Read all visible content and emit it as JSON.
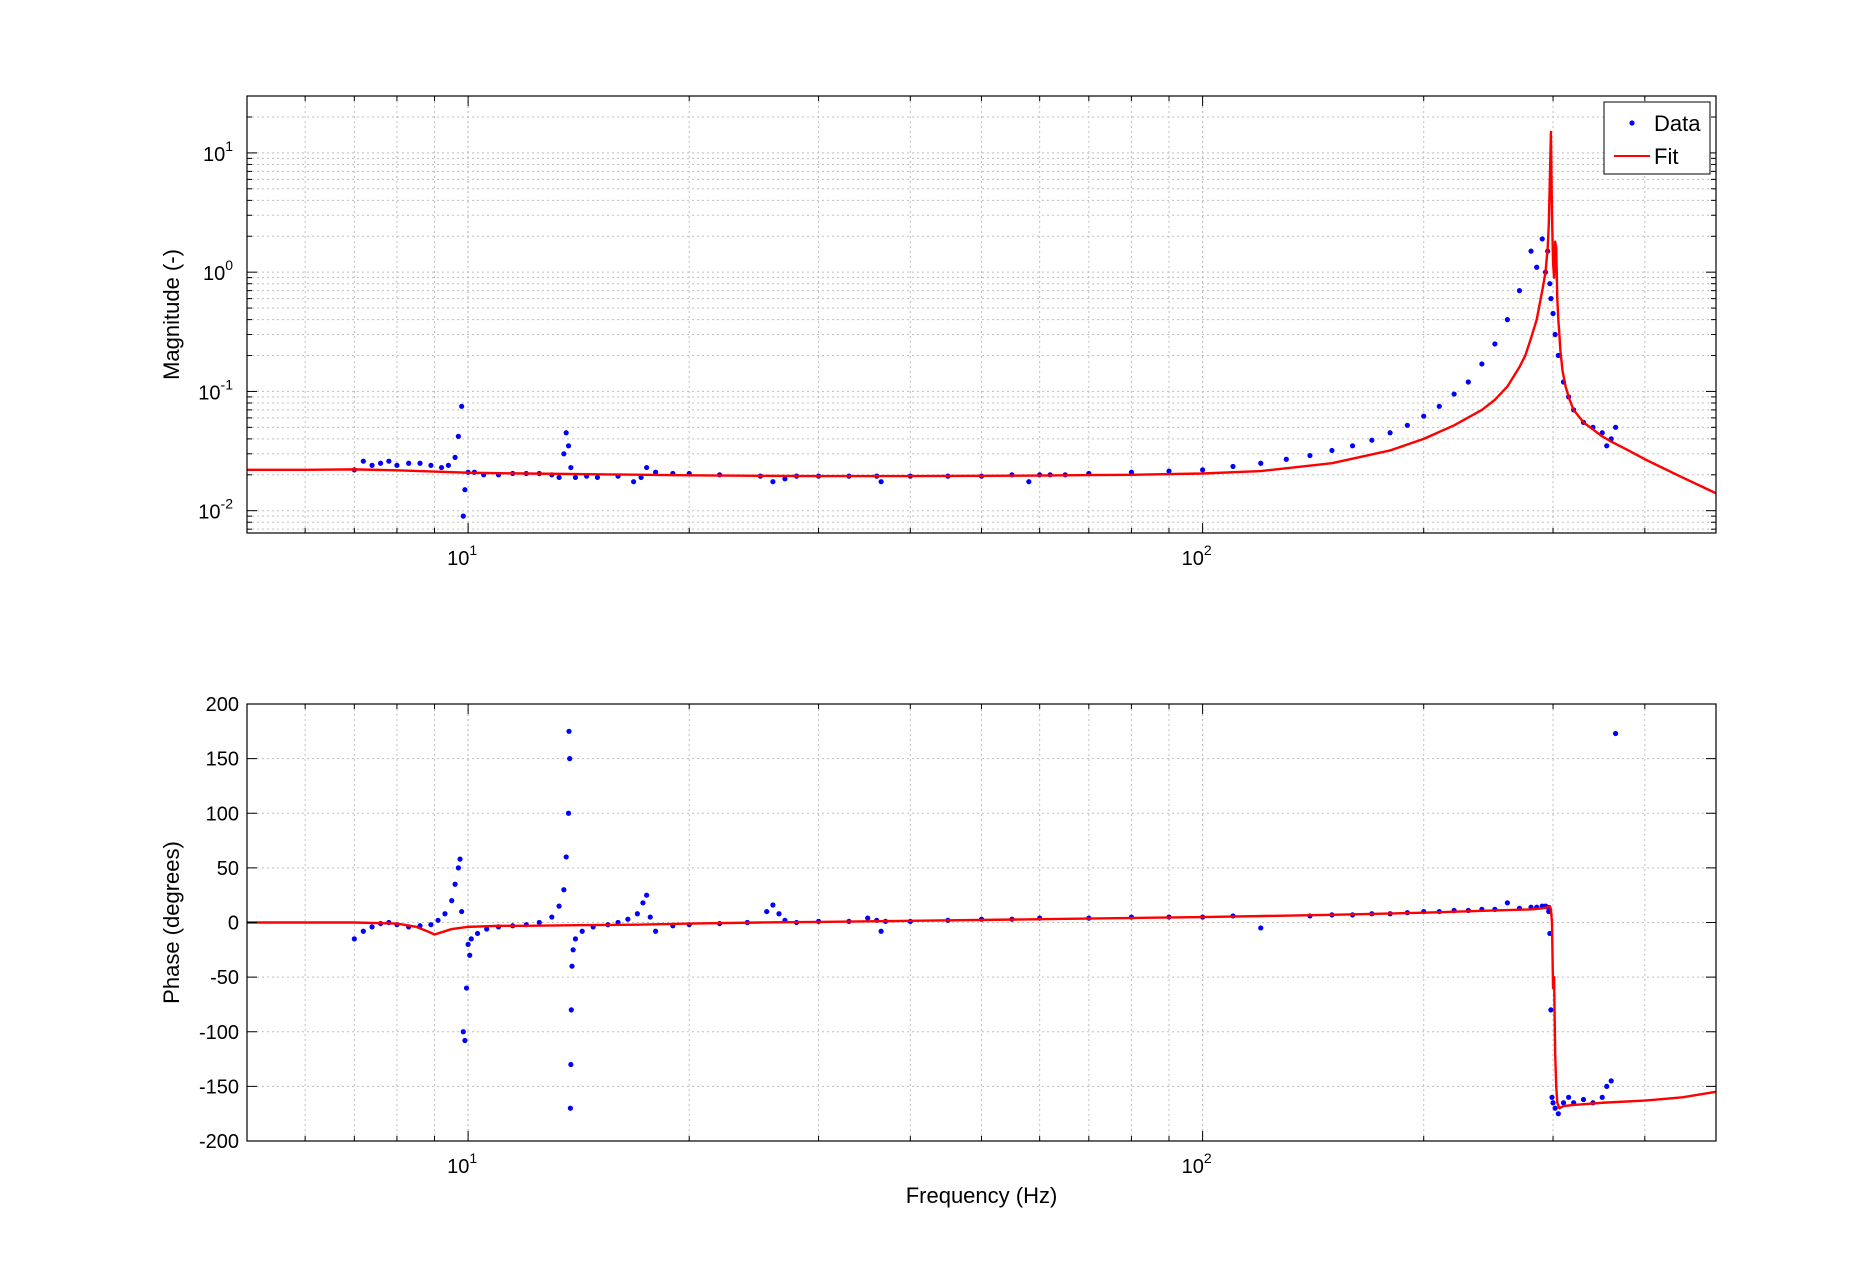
{
  "colors": {
    "data": "#0000ff",
    "fit": "#ff0000",
    "grid": "#bfbfbf",
    "axes": "#000000"
  },
  "chart_data": [
    {
      "type": "scatter",
      "xscale": "log",
      "yscale": "log",
      "xlim": [
        5,
        500
      ],
      "ylim": [
        0.0065,
        30
      ],
      "xlabel": "",
      "ylabel": "Magnitude (-)",
      "grid": true,
      "legend": {
        "placement": "top-right",
        "entries": [
          "Data",
          "Fit"
        ]
      },
      "x_ticks": [
        {
          "value": 10,
          "base": "10",
          "exp": "1"
        },
        {
          "value": 100,
          "base": "10",
          "exp": "2"
        }
      ],
      "y_ticks": [
        {
          "value": 0.01,
          "base": "10",
          "exp": "-2"
        },
        {
          "value": 0.1,
          "base": "10",
          "exp": "-1"
        },
        {
          "value": 1,
          "base": "10",
          "exp": "0"
        },
        {
          "value": 10,
          "base": "10",
          "exp": "1"
        }
      ],
      "series": [
        {
          "name": "Data",
          "style": "points",
          "x": [
            7,
            7.2,
            7.4,
            7.6,
            7.8,
            8,
            8.3,
            8.6,
            8.9,
            9.2,
            9.4,
            9.6,
            9.7,
            9.8,
            9.85,
            9.9,
            10,
            10.2,
            10.5,
            11,
            11.5,
            12,
            12.5,
            13,
            13.3,
            13.5,
            13.6,
            13.7,
            13.8,
            14,
            14.5,
            15,
            16,
            16.8,
            17.2,
            17.5,
            18,
            19,
            20,
            22,
            25,
            26,
            27,
            28,
            30,
            33,
            36,
            36.5,
            40,
            45,
            50,
            55,
            58,
            60,
            62,
            65,
            70,
            80,
            90,
            100,
            110,
            120,
            130,
            140,
            150,
            160,
            170,
            180,
            190,
            200,
            210,
            220,
            230,
            240,
            250,
            260,
            270,
            280,
            285,
            290,
            293,
            295,
            297,
            298,
            300,
            302,
            305,
            310,
            315,
            320,
            330,
            340,
            350,
            355,
            360,
            365
          ],
          "y": [
            0.022,
            0.026,
            0.024,
            0.025,
            0.026,
            0.024,
            0.025,
            0.025,
            0.024,
            0.023,
            0.024,
            0.028,
            0.042,
            0.075,
            0.009,
            0.015,
            0.021,
            0.021,
            0.02,
            0.02,
            0.0205,
            0.0205,
            0.0205,
            0.02,
            0.019,
            0.03,
            0.045,
            0.035,
            0.023,
            0.019,
            0.0195,
            0.019,
            0.0195,
            0.0175,
            0.019,
            0.023,
            0.021,
            0.0205,
            0.0205,
            0.02,
            0.0195,
            0.0175,
            0.0185,
            0.0195,
            0.0195,
            0.0195,
            0.0195,
            0.0175,
            0.0195,
            0.0195,
            0.0195,
            0.02,
            0.0175,
            0.02,
            0.02,
            0.02,
            0.0205,
            0.021,
            0.0215,
            0.022,
            0.0235,
            0.025,
            0.027,
            0.029,
            0.032,
            0.035,
            0.039,
            0.045,
            0.052,
            0.062,
            0.075,
            0.095,
            0.12,
            0.17,
            0.25,
            0.4,
            0.7,
            1.5,
            1.1,
            1.9,
            1.0,
            1.5,
            0.8,
            0.6,
            0.45,
            0.3,
            0.2,
            0.12,
            0.09,
            0.07,
            0.055,
            0.05,
            0.045,
            0.035,
            0.04,
            0.05
          ]
        },
        {
          "name": "Fit",
          "style": "line",
          "x": [
            5,
            6,
            7,
            8,
            9,
            10,
            12,
            15,
            20,
            25,
            30,
            40,
            50,
            60,
            70,
            80,
            100,
            120,
            150,
            180,
            200,
            220,
            240,
            250,
            260,
            270,
            275,
            280,
            285,
            290,
            293,
            295,
            296,
            297,
            298,
            299,
            300,
            301,
            302,
            303,
            304,
            305,
            306,
            307,
            309,
            312,
            316,
            320,
            330,
            340,
            350,
            360,
            380,
            400,
            450,
            500
          ],
          "y": [
            0.022,
            0.022,
            0.0222,
            0.0218,
            0.0213,
            0.0208,
            0.0205,
            0.0202,
            0.0198,
            0.0196,
            0.0195,
            0.0195,
            0.0196,
            0.0197,
            0.0199,
            0.02,
            0.0205,
            0.0215,
            0.025,
            0.032,
            0.04,
            0.052,
            0.07,
            0.085,
            0.11,
            0.16,
            0.2,
            0.28,
            0.4,
            0.7,
            1.0,
            1.6,
            2.5,
            6,
            15,
            3,
            1.2,
            0.9,
            1.8,
            1.6,
            0.6,
            0.4,
            0.3,
            0.22,
            0.15,
            0.11,
            0.085,
            0.07,
            0.055,
            0.048,
            0.042,
            0.038,
            0.032,
            0.027,
            0.019,
            0.014
          ]
        }
      ]
    },
    {
      "type": "scatter",
      "xscale": "log",
      "xlim": [
        5,
        500
      ],
      "ylim": [
        -200,
        200
      ],
      "xlabel": "Frequency (Hz)",
      "ylabel": "Phase (degrees)",
      "grid": true,
      "x_ticks": [
        {
          "value": 10,
          "base": "10",
          "exp": "1"
        },
        {
          "value": 100,
          "base": "10",
          "exp": "2"
        }
      ],
      "y_ticks": [
        {
          "value": 200,
          "label": "200"
        },
        {
          "value": 150,
          "label": "150"
        },
        {
          "value": 100,
          "label": "100"
        },
        {
          "value": 50,
          "label": "50"
        },
        {
          "value": 0,
          "label": "0"
        },
        {
          "value": -50,
          "label": "-50"
        },
        {
          "value": -100,
          "label": "-100"
        },
        {
          "value": -150,
          "label": "-150"
        },
        {
          "value": -200,
          "label": "-200"
        }
      ],
      "series": [
        {
          "name": "Data",
          "style": "points",
          "x": [
            7,
            7.2,
            7.4,
            7.6,
            7.8,
            8,
            8.3,
            8.6,
            8.9,
            9.1,
            9.3,
            9.5,
            9.6,
            9.7,
            9.75,
            9.8,
            9.85,
            9.9,
            9.95,
            10,
            10.05,
            10.1,
            10.3,
            10.6,
            11,
            11.5,
            12,
            12.5,
            13,
            13.3,
            13.5,
            13.6,
            13.7,
            13.72,
            13.75,
            13.78,
            13.8,
            13.82,
            13.85,
            13.9,
            14,
            14.3,
            14.8,
            15.5,
            16,
            16.5,
            17,
            17.3,
            17.5,
            17.7,
            18,
            19,
            20,
            22,
            24,
            25.5,
            26,
            26.5,
            27,
            28,
            30,
            33,
            35,
            36,
            36.5,
            37,
            40,
            45,
            50,
            55,
            60,
            70,
            80,
            90,
            100,
            110,
            120,
            140,
            150,
            160,
            170,
            180,
            190,
            200,
            210,
            220,
            230,
            240,
            250,
            260,
            270,
            280,
            285,
            290,
            293,
            295,
            296,
            297,
            298,
            299,
            300,
            302,
            305,
            310,
            315,
            320,
            330,
            340,
            350,
            355,
            360,
            365
          ],
          "y": [
            -15,
            -8,
            -4,
            -1,
            0,
            -2,
            -4,
            -3,
            -2,
            2,
            8,
            20,
            35,
            50,
            58,
            10,
            -100,
            -108,
            -60,
            -20,
            -30,
            -15,
            -10,
            -6,
            -4,
            -3,
            -2,
            0,
            5,
            15,
            30,
            60,
            100,
            175,
            150,
            -170,
            -130,
            -80,
            -40,
            -25,
            -15,
            -8,
            -4,
            -2,
            0,
            3,
            8,
            18,
            25,
            5,
            -8,
            -3,
            -2,
            -1,
            0,
            10,
            16,
            8,
            2,
            0,
            1,
            1,
            4,
            2,
            -8,
            1,
            1,
            2,
            3,
            3,
            4,
            4,
            5,
            5,
            5,
            6,
            -5,
            6,
            7,
            7,
            8,
            8,
            9,
            10,
            10,
            11,
            11,
            12,
            12,
            18,
            13,
            14,
            14,
            15,
            15,
            14,
            10,
            -10,
            -80,
            -160,
            -165,
            -170,
            -175,
            -165,
            -160,
            -165,
            -162,
            -165,
            -160,
            -150,
            -145,
            173
          ]
        },
        {
          "name": "Fit",
          "style": "line",
          "x": [
            5,
            7,
            8,
            8.5,
            8.8,
            9,
            9.2,
            9.5,
            10,
            11,
            12,
            14,
            17,
            20,
            25,
            30,
            40,
            60,
            100,
            150,
            200,
            250,
            280,
            290,
            295,
            297,
            298,
            299,
            300,
            301,
            302,
            303,
            304,
            306,
            310,
            320,
            350,
            400,
            450,
            500
          ],
          "y": [
            0,
            0,
            -1,
            -4,
            -8,
            -11,
            -9,
            -6,
            -4,
            -3,
            -3,
            -2.5,
            -2,
            -1,
            0,
            0.5,
            1.5,
            3,
            5,
            7,
            9,
            11,
            12,
            13,
            14,
            15,
            12,
            0,
            -60,
            -50,
            -120,
            -150,
            -165,
            -170,
            -168,
            -167,
            -165,
            -163,
            -160,
            -155
          ]
        }
      ]
    }
  ]
}
